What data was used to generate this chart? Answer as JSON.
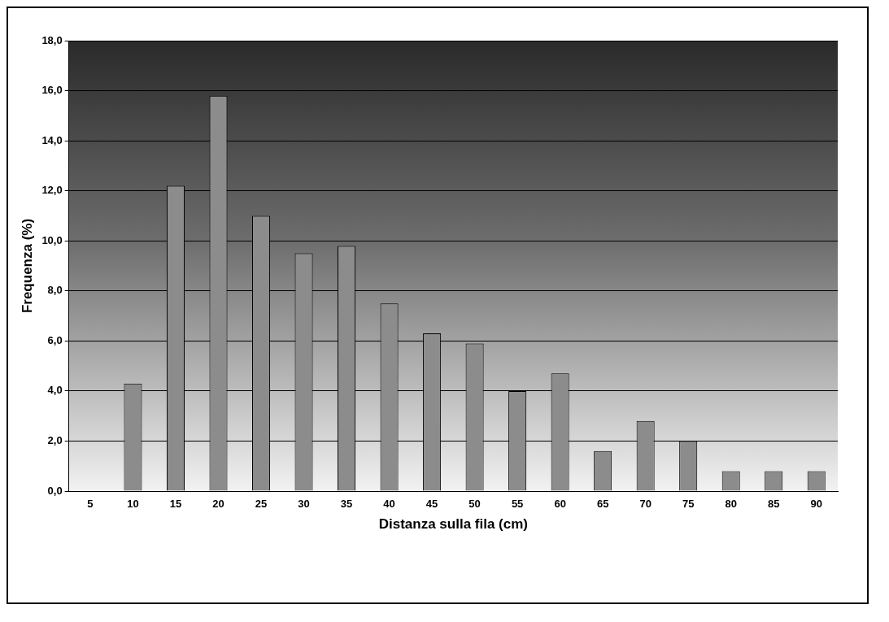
{
  "chart_data": {
    "type": "bar",
    "xlabel": "Distanza sulla fila (cm)",
    "ylabel": "Frequenza (%)",
    "categories": [
      "5",
      "10",
      "15",
      "20",
      "25",
      "30",
      "35",
      "40",
      "45",
      "50",
      "55",
      "60",
      "65",
      "70",
      "75",
      "80",
      "85",
      "90"
    ],
    "values": [
      null,
      4.3,
      12.2,
      15.8,
      11.0,
      9.5,
      9.8,
      7.5,
      6.3,
      5.9,
      4.0,
      4.7,
      1.6,
      2.8,
      2.0,
      0.8,
      0.8,
      0.8
    ],
    "color": "#8c8c8c",
    "ylim": [
      0,
      18
    ],
    "yticks": [
      {
        "value": 0,
        "label": "0,0"
      },
      {
        "value": 2,
        "label": "2,0"
      },
      {
        "value": 4,
        "label": "4,0"
      },
      {
        "value": 6,
        "label": "6,0"
      },
      {
        "value": 8,
        "label": "8,0"
      },
      {
        "value": 10,
        "label": "10,0"
      },
      {
        "value": 12,
        "label": "12,0"
      },
      {
        "value": 14,
        "label": "14,0"
      },
      {
        "value": 16,
        "label": "16,0"
      },
      {
        "value": 18,
        "label": "18,0"
      }
    ],
    "grid": "y",
    "legend": false
  }
}
